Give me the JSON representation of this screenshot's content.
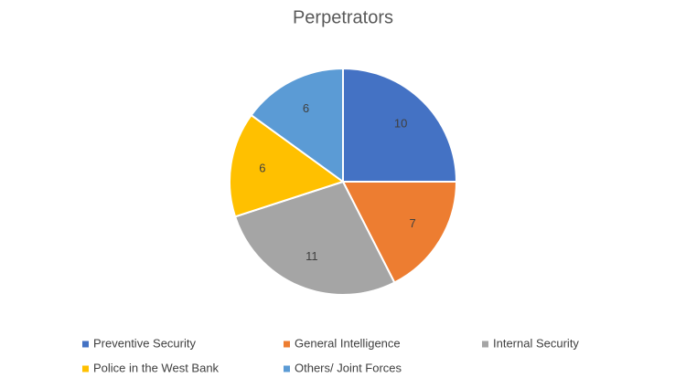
{
  "chart_data": {
    "type": "pie",
    "title": "Perpetrators",
    "categories": [
      "Preventive Security",
      "General Intelligence",
      "Internal Security",
      "Police in the West Bank",
      "Others/ Joint Forces"
    ],
    "values": [
      10,
      7,
      11,
      6,
      6
    ],
    "colors": [
      "#4472c4",
      "#ed7d31",
      "#a5a5a5",
      "#ffc000",
      "#5b9bd5"
    ],
    "legend": "bottom"
  }
}
